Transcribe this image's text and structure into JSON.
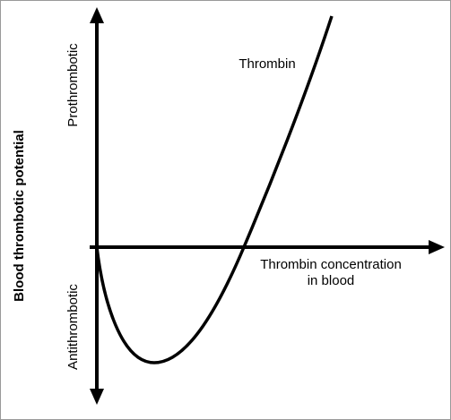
{
  "y_axis": {
    "title": "Blood thrombotic potential",
    "upper_label": "Prothrombotic",
    "lower_label": "Antithrombotic"
  },
  "x_axis": {
    "title_line1": "Thrombin concentration",
    "title_line2": "in blood"
  },
  "curve": {
    "label": "Thrombin"
  }
}
